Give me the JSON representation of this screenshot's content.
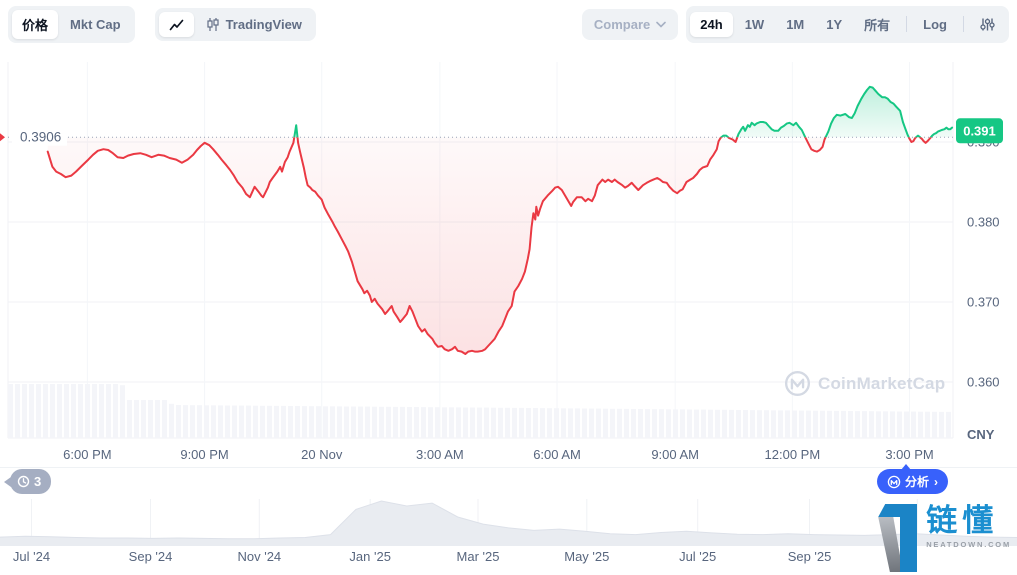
{
  "toolbar": {
    "view_toggle": [
      {
        "label": "价格",
        "active": true
      },
      {
        "label": "Mkt Cap",
        "active": false
      }
    ],
    "chart_type_toggle": [
      {
        "icon": "line-chart-icon",
        "label": "",
        "active": true
      },
      {
        "icon": "candlestick-icon",
        "label": "TradingView",
        "active": false
      }
    ],
    "compare_label": "Compare",
    "periods": [
      {
        "label": "24h",
        "active": true
      },
      {
        "label": "1W"
      },
      {
        "label": "1M"
      },
      {
        "label": "1Y"
      },
      {
        "label": "所有"
      },
      {
        "divider": true
      },
      {
        "label": "Log"
      },
      {
        "divider": true
      },
      {
        "icon": "sliders-icon"
      }
    ]
  },
  "badges": {
    "history_count": "3",
    "analyze_label": "分析",
    "analyze_chevron": "›"
  },
  "watermark": {
    "label": "CoinMarketCap"
  },
  "site_logo": {
    "title": "链懂",
    "subtitle": "NEATDOWN.COM"
  },
  "colors": {
    "up": "#16c784",
    "down": "#ea3943",
    "accent_blue": "#3861fb",
    "axis_text": "#58667e",
    "muted": "#a6b0c3",
    "grid": "#f0f2f5",
    "volume_bar": "#f4f5f9",
    "mini_fill": "#e9ecf1",
    "mini_stroke": "#dde1e9",
    "watermark": "#d4d9e3"
  },
  "chart_data": [
    {
      "type": "line",
      "title": "24h price chart",
      "currency": "CNY",
      "prev_close": 0.3906,
      "prev_close_label": "0.3906",
      "current_price": 0.3914,
      "current_price_label": "0.391",
      "y_ticks": [
        {
          "label": "0.390",
          "value": 0.39
        },
        {
          "label": "0.380",
          "value": 0.38
        },
        {
          "label": "0.370",
          "value": 0.37
        },
        {
          "label": "0.360",
          "value": 0.36
        }
      ],
      "y_top_value": 0.4,
      "x_ticks": [
        {
          "label": "6:00 PM",
          "pos": 0.084
        },
        {
          "label": "9:00 PM",
          "pos": 0.208
        },
        {
          "label": "20 Nov",
          "pos": 0.332
        },
        {
          "label": "3:00 AM",
          "pos": 0.457
        },
        {
          "label": "6:00 AM",
          "pos": 0.581
        },
        {
          "label": "9:00 AM",
          "pos": 0.706
        },
        {
          "label": "12:00 PM",
          "pos": 0.83
        },
        {
          "label": "3:00 PM",
          "pos": 0.954
        }
      ],
      "points": [
        [
          0.042,
          0.3888
        ],
        [
          0.047,
          0.3869
        ],
        [
          0.051,
          0.3863
        ],
        [
          0.056,
          0.386
        ],
        [
          0.061,
          0.3856
        ],
        [
          0.067,
          0.3858
        ],
        [
          0.072,
          0.3863
        ],
        [
          0.078,
          0.387
        ],
        [
          0.085,
          0.3878
        ],
        [
          0.09,
          0.3884
        ],
        [
          0.095,
          0.3889
        ],
        [
          0.101,
          0.3891
        ],
        [
          0.106,
          0.389
        ],
        [
          0.111,
          0.3886
        ],
        [
          0.116,
          0.3881
        ],
        [
          0.122,
          0.388
        ],
        [
          0.127,
          0.3883
        ],
        [
          0.133,
          0.3885
        ],
        [
          0.14,
          0.3886
        ],
        [
          0.146,
          0.3884
        ],
        [
          0.152,
          0.3881
        ],
        [
          0.159,
          0.3884
        ],
        [
          0.165,
          0.3883
        ],
        [
          0.171,
          0.388
        ],
        [
          0.178,
          0.3878
        ],
        [
          0.184,
          0.3874
        ],
        [
          0.19,
          0.3878
        ],
        [
          0.196,
          0.3884
        ],
        [
          0.2,
          0.389
        ],
        [
          0.204,
          0.3895
        ],
        [
          0.208,
          0.3899
        ],
        [
          0.213,
          0.3896
        ],
        [
          0.217,
          0.3891
        ],
        [
          0.222,
          0.3884
        ],
        [
          0.226,
          0.3878
        ],
        [
          0.231,
          0.3871
        ],
        [
          0.235,
          0.3865
        ],
        [
          0.239,
          0.3858
        ],
        [
          0.243,
          0.385
        ],
        [
          0.248,
          0.3843
        ],
        [
          0.252,
          0.3835
        ],
        [
          0.256,
          0.3831
        ],
        [
          0.261,
          0.3844
        ],
        [
          0.265,
          0.3838
        ],
        [
          0.268,
          0.3833
        ],
        [
          0.27,
          0.3831
        ],
        [
          0.275,
          0.3843
        ],
        [
          0.277,
          0.385
        ],
        [
          0.28,
          0.3855
        ],
        [
          0.285,
          0.3863
        ],
        [
          0.288,
          0.3869
        ],
        [
          0.29,
          0.3863
        ],
        [
          0.293,
          0.3875
        ],
        [
          0.296,
          0.3881
        ],
        [
          0.298,
          0.3888
        ],
        [
          0.302,
          0.3899
        ],
        [
          0.305,
          0.3921
        ],
        [
          0.307,
          0.3899
        ],
        [
          0.309,
          0.3888
        ],
        [
          0.311,
          0.3878
        ],
        [
          0.313,
          0.3868
        ],
        [
          0.315,
          0.3856
        ],
        [
          0.317,
          0.3846
        ],
        [
          0.32,
          0.3843
        ],
        [
          0.322,
          0.384
        ],
        [
          0.325,
          0.3838
        ],
        [
          0.328,
          0.3833
        ],
        [
          0.332,
          0.3828
        ],
        [
          0.335,
          0.3818
        ],
        [
          0.339,
          0.3809
        ],
        [
          0.343,
          0.3801
        ],
        [
          0.346,
          0.3794
        ],
        [
          0.349,
          0.3788
        ],
        [
          0.353,
          0.3779
        ],
        [
          0.357,
          0.377
        ],
        [
          0.36,
          0.3763
        ],
        [
          0.364,
          0.375
        ],
        [
          0.367,
          0.3738
        ],
        [
          0.37,
          0.3726
        ],
        [
          0.375,
          0.3716
        ],
        [
          0.377,
          0.3711
        ],
        [
          0.38,
          0.3714
        ],
        [
          0.383,
          0.3708
        ],
        [
          0.385,
          0.37
        ],
        [
          0.388,
          0.3704
        ],
        [
          0.391,
          0.3698
        ],
        [
          0.396,
          0.3691
        ],
        [
          0.399,
          0.3685
        ],
        [
          0.402,
          0.3689
        ],
        [
          0.406,
          0.3695
        ],
        [
          0.408,
          0.3688
        ],
        [
          0.412,
          0.3681
        ],
        [
          0.415,
          0.3675
        ],
        [
          0.418,
          0.3679
        ],
        [
          0.422,
          0.3685
        ],
        [
          0.425,
          0.3695
        ],
        [
          0.428,
          0.3688
        ],
        [
          0.431,
          0.3679
        ],
        [
          0.434,
          0.367
        ],
        [
          0.438,
          0.3663
        ],
        [
          0.441,
          0.3666
        ],
        [
          0.444,
          0.366
        ],
        [
          0.449,
          0.3654
        ],
        [
          0.452,
          0.3648
        ],
        [
          0.455,
          0.3644
        ],
        [
          0.459,
          0.3645
        ],
        [
          0.462,
          0.3641
        ],
        [
          0.466,
          0.3639
        ],
        [
          0.47,
          0.3641
        ],
        [
          0.473,
          0.3644
        ],
        [
          0.476,
          0.3639
        ],
        [
          0.48,
          0.3638
        ],
        [
          0.484,
          0.3635
        ],
        [
          0.487,
          0.3638
        ],
        [
          0.491,
          0.3639
        ],
        [
          0.494,
          0.3638
        ],
        [
          0.497,
          0.3638
        ],
        [
          0.502,
          0.3639
        ],
        [
          0.505,
          0.3641
        ],
        [
          0.508,
          0.3645
        ],
        [
          0.512,
          0.365
        ],
        [
          0.515,
          0.3654
        ],
        [
          0.519,
          0.3663
        ],
        [
          0.523,
          0.367
        ],
        [
          0.526,
          0.3679
        ],
        [
          0.529,
          0.3688
        ],
        [
          0.533,
          0.3695
        ],
        [
          0.536,
          0.3713
        ],
        [
          0.54,
          0.372
        ],
        [
          0.544,
          0.3729
        ],
        [
          0.547,
          0.3738
        ],
        [
          0.55,
          0.3754
        ],
        [
          0.552,
          0.3766
        ],
        [
          0.554,
          0.3793
        ],
        [
          0.556,
          0.3811
        ],
        [
          0.558,
          0.3803
        ],
        [
          0.559,
          0.3819
        ],
        [
          0.561,
          0.3808
        ],
        [
          0.563,
          0.3816
        ],
        [
          0.566,
          0.3826
        ],
        [
          0.571,
          0.3833
        ],
        [
          0.576,
          0.3839
        ],
        [
          0.579,
          0.3843
        ],
        [
          0.582,
          0.3844
        ],
        [
          0.586,
          0.384
        ],
        [
          0.589,
          0.3834
        ],
        [
          0.593,
          0.3826
        ],
        [
          0.596,
          0.382
        ],
        [
          0.598,
          0.3825
        ],
        [
          0.602,
          0.3831
        ],
        [
          0.607,
          0.3831
        ],
        [
          0.611,
          0.3826
        ],
        [
          0.614,
          0.3829
        ],
        [
          0.618,
          0.3826
        ],
        [
          0.621,
          0.3833
        ],
        [
          0.624,
          0.3846
        ],
        [
          0.629,
          0.3853
        ],
        [
          0.632,
          0.385
        ],
        [
          0.635,
          0.3853
        ],
        [
          0.639,
          0.385
        ],
        [
          0.642,
          0.3853
        ],
        [
          0.645,
          0.385
        ],
        [
          0.65,
          0.3846
        ],
        [
          0.653,
          0.3843
        ],
        [
          0.656,
          0.3845
        ],
        [
          0.66,
          0.3849
        ],
        [
          0.663,
          0.3845
        ],
        [
          0.667,
          0.384
        ],
        [
          0.672,
          0.3846
        ],
        [
          0.676,
          0.3849
        ],
        [
          0.679,
          0.3851
        ],
        [
          0.683,
          0.3853
        ],
        [
          0.687,
          0.3855
        ],
        [
          0.69,
          0.3853
        ],
        [
          0.693,
          0.385
        ],
        [
          0.697,
          0.3849
        ],
        [
          0.7,
          0.3844
        ],
        [
          0.704,
          0.3839
        ],
        [
          0.708,
          0.3836
        ],
        [
          0.711,
          0.3839
        ],
        [
          0.714,
          0.3841
        ],
        [
          0.718,
          0.385
        ],
        [
          0.722,
          0.3853
        ],
        [
          0.725,
          0.3855
        ],
        [
          0.729,
          0.386
        ],
        [
          0.732,
          0.3865
        ],
        [
          0.735,
          0.3868
        ],
        [
          0.74,
          0.387
        ],
        [
          0.743,
          0.3878
        ],
        [
          0.746,
          0.3883
        ],
        [
          0.75,
          0.3891
        ],
        [
          0.752,
          0.3901
        ],
        [
          0.754,
          0.3905
        ],
        [
          0.757,
          0.3908
        ],
        [
          0.76,
          0.3908
        ],
        [
          0.763,
          0.3905
        ],
        [
          0.767,
          0.3903
        ],
        [
          0.77,
          0.39
        ],
        [
          0.773,
          0.391
        ],
        [
          0.776,
          0.3916
        ],
        [
          0.778,
          0.3919
        ],
        [
          0.78,
          0.3914
        ],
        [
          0.783,
          0.3921
        ],
        [
          0.785,
          0.3919
        ],
        [
          0.787,
          0.3924
        ],
        [
          0.79,
          0.3921
        ],
        [
          0.792,
          0.3923
        ],
        [
          0.796,
          0.3925
        ],
        [
          0.799,
          0.3925
        ],
        [
          0.802,
          0.3924
        ],
        [
          0.805,
          0.392
        ],
        [
          0.808,
          0.3916
        ],
        [
          0.811,
          0.3914
        ],
        [
          0.815,
          0.3914
        ],
        [
          0.818,
          0.3918
        ],
        [
          0.821,
          0.392
        ],
        [
          0.824,
          0.3923
        ],
        [
          0.827,
          0.3924
        ],
        [
          0.831,
          0.3921
        ],
        [
          0.834,
          0.3924
        ],
        [
          0.837,
          0.3919
        ],
        [
          0.84,
          0.3915
        ],
        [
          0.842,
          0.391
        ],
        [
          0.844,
          0.3905
        ],
        [
          0.847,
          0.3898
        ],
        [
          0.85,
          0.3891
        ],
        [
          0.853,
          0.3889
        ],
        [
          0.856,
          0.3888
        ],
        [
          0.859,
          0.389
        ],
        [
          0.862,
          0.3894
        ],
        [
          0.864,
          0.3903
        ],
        [
          0.868,
          0.3913
        ],
        [
          0.871,
          0.3923
        ],
        [
          0.874,
          0.393
        ],
        [
          0.877,
          0.3934
        ],
        [
          0.881,
          0.3933
        ],
        [
          0.886,
          0.3935
        ],
        [
          0.89,
          0.3931
        ],
        [
          0.893,
          0.393
        ],
        [
          0.896,
          0.3936
        ],
        [
          0.899,
          0.3945
        ],
        [
          0.903,
          0.3954
        ],
        [
          0.906,
          0.396
        ],
        [
          0.909,
          0.3965
        ],
        [
          0.912,
          0.3969
        ],
        [
          0.915,
          0.3968
        ],
        [
          0.918,
          0.3964
        ],
        [
          0.921,
          0.396
        ],
        [
          0.925,
          0.3956
        ],
        [
          0.928,
          0.3956
        ],
        [
          0.931,
          0.3954
        ],
        [
          0.934,
          0.395
        ],
        [
          0.937,
          0.3948
        ],
        [
          0.94,
          0.3944
        ],
        [
          0.944,
          0.3939
        ],
        [
          0.947,
          0.3925
        ],
        [
          0.95,
          0.3915
        ],
        [
          0.952,
          0.3909
        ],
        [
          0.954,
          0.3904
        ],
        [
          0.956,
          0.39
        ],
        [
          0.958,
          0.3901
        ],
        [
          0.96,
          0.3905
        ],
        [
          0.963,
          0.3908
        ],
        [
          0.965,
          0.3906
        ],
        [
          0.967,
          0.3904
        ],
        [
          0.969,
          0.3901
        ],
        [
          0.971,
          0.3899
        ],
        [
          0.973,
          0.3901
        ],
        [
          0.976,
          0.3905
        ],
        [
          0.978,
          0.3908
        ],
        [
          0.98,
          0.391
        ],
        [
          0.982,
          0.3911
        ],
        [
          0.984,
          0.3913
        ],
        [
          0.986,
          0.3914
        ],
        [
          0.988,
          0.3915
        ],
        [
          0.991,
          0.3916
        ],
        [
          0.993,
          0.3918
        ],
        [
          0.995,
          0.3916
        ],
        [
          0.997,
          0.3916
        ],
        [
          0.999,
          0.3918
        ]
      ],
      "volume_profile": [
        [
          0,
          54
        ],
        [
          0.118,
          54
        ],
        [
          0.125,
          38
        ],
        [
          0.165,
          38
        ],
        [
          0.172,
          33
        ],
        [
          0.55,
          30
        ],
        [
          1,
          26
        ]
      ]
    },
    {
      "type": "area",
      "title": "history navigator",
      "x_ticks": [
        {
          "label": "Jul '24",
          "pos": 0.031
        },
        {
          "label": "Sep '24",
          "pos": 0.148
        },
        {
          "label": "Nov '24",
          "pos": 0.255
        },
        {
          "label": "Jan '25",
          "pos": 0.364
        },
        {
          "label": "Mar '25",
          "pos": 0.47
        },
        {
          "label": "May '25",
          "pos": 0.577
        },
        {
          "label": "Jul '25",
          "pos": 0.686
        },
        {
          "label": "Sep '25",
          "pos": 0.796
        },
        {
          "label": "",
          "pos": 0.902
        }
      ],
      "values": [
        0.14,
        0.16,
        0.15,
        0.13,
        0.12,
        0.12,
        0.11,
        0.12,
        0.11,
        0.1,
        0.1,
        0.12,
        0.13,
        0.2,
        0.8,
        1.0,
        0.88,
        0.95,
        0.62,
        0.45,
        0.36,
        0.3,
        0.33,
        0.28,
        0.22,
        0.2,
        0.25,
        0.28,
        0.24,
        0.21,
        0.2,
        0.22,
        0.2,
        0.19,
        0.18,
        0.2,
        0.22,
        0.19,
        0.16,
        0.14,
        0.13
      ]
    }
  ]
}
